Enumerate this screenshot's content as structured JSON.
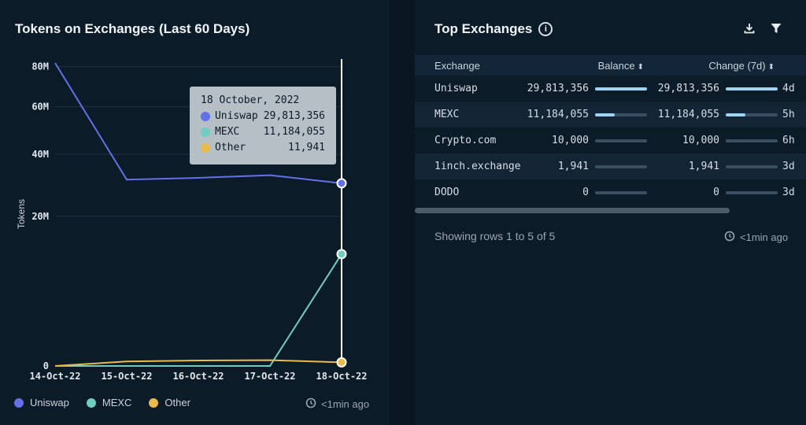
{
  "left_panel": {
    "title": "Tokens on Exchanges (Last 60 Days)",
    "updated": "<1min ago",
    "tooltip": {
      "date": "18 October, 2022",
      "rows": [
        {
          "name": "Uniswap",
          "value": "29,813,356",
          "color": "#6470e8"
        },
        {
          "name": "MEXC",
          "value": "11,184,055",
          "color": "#72cdc1"
        },
        {
          "name": "Other",
          "value": "11,941",
          "color": "#e8bb4a"
        }
      ]
    }
  },
  "chart_data": {
    "type": "line",
    "title": "Tokens on Exchanges (Last 60 Days)",
    "xlabel": "",
    "ylabel": "Tokens",
    "categories": [
      "14-Oct-22",
      "15-Oct-22",
      "16-Oct-22",
      "17-Oct-22",
      "18-Oct-22"
    ],
    "y_ticks": [
      "0",
      "20M",
      "40M",
      "60M",
      "80M"
    ],
    "series": [
      {
        "name": "Uniswap",
        "color": "#6470e8",
        "values": [
          82000000,
          31000000,
          31600000,
          32500000,
          29813356
        ]
      },
      {
        "name": "MEXC",
        "color": "#72cdc1",
        "values": [
          0,
          0,
          0,
          0,
          11184055
        ]
      },
      {
        "name": "Other",
        "color": "#e8bb4a",
        "values": [
          0,
          18000,
          27000,
          30000,
          11941
        ]
      }
    ],
    "legend": "bottom-left",
    "grid": true,
    "scale": "sqrt"
  },
  "right_panel": {
    "title": "Top Exchanges",
    "columns": {
      "exchange": "Exchange",
      "balance": "Balance",
      "change": "Change (7d)"
    },
    "rows": [
      {
        "exchange": "Uniswap",
        "balance": "29,813,356",
        "balance_fraction": 1.0,
        "change": "29,813,356",
        "change_fraction": 1.0,
        "time": "4d"
      },
      {
        "exchange": "MEXC",
        "balance": "11,184,055",
        "balance_fraction": 0.375,
        "change": "11,184,055",
        "change_fraction": 0.375,
        "time": "5h"
      },
      {
        "exchange": "Crypto.com",
        "balance": "10,000",
        "balance_fraction": 0,
        "change": "10,000",
        "change_fraction": 0,
        "time": "6h"
      },
      {
        "exchange": "1inch.exchange",
        "balance": "1,941",
        "balance_fraction": 0,
        "change": "1,941",
        "change_fraction": 0,
        "time": "3d"
      },
      {
        "exchange": "DODO",
        "balance": "0",
        "balance_fraction": 0,
        "change": "0",
        "change_fraction": 0,
        "time": "3d"
      }
    ],
    "footer": "Showing rows 1 to 5 of 5",
    "updated": "<1min ago"
  }
}
